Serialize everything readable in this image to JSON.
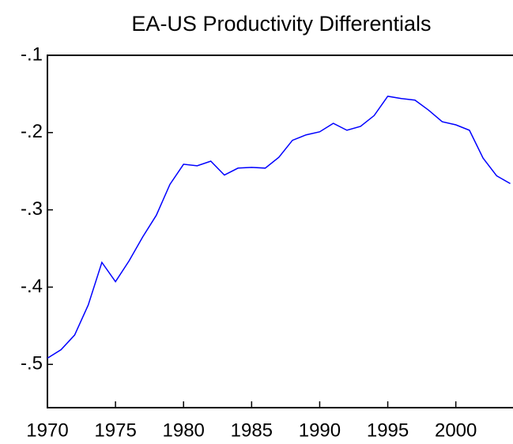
{
  "chart_data": {
    "type": "line",
    "title": "EA-US Productivity Differentials",
    "x": [
      1970,
      1971,
      1972,
      1973,
      1974,
      1975,
      1976,
      1977,
      1978,
      1979,
      1980,
      1981,
      1982,
      1983,
      1984,
      1985,
      1986,
      1987,
      1988,
      1989,
      1990,
      1991,
      1992,
      1993,
      1994,
      1995,
      1996,
      1997,
      1998,
      1999,
      2000,
      2001,
      2002,
      2003,
      2004
    ],
    "series": [
      {
        "color": "#0000ff",
        "values": [
          -0.492,
          -0.481,
          -0.462,
          -0.423,
          -0.368,
          -0.393,
          -0.366,
          -0.335,
          -0.307,
          -0.267,
          -0.241,
          -0.243,
          -0.237,
          -0.255,
          -0.246,
          -0.245,
          -0.246,
          -0.232,
          -0.21,
          -0.203,
          -0.199,
          -0.188,
          -0.197,
          -0.192,
          -0.178,
          -0.153,
          -0.156,
          -0.158,
          -0.171,
          -0.186,
          -0.19,
          -0.197,
          -0.233,
          -0.256,
          -0.266
        ]
      }
    ],
    "xlim": [
      1970,
      2004.2
    ],
    "xticks": [
      1970,
      1975,
      1980,
      1985,
      1990,
      1995,
      2000
    ],
    "ylim": [
      -0.556,
      -0.1
    ],
    "yticks": [
      {
        "value": -0.1,
        "label": "-.1"
      },
      {
        "value": -0.2,
        "label": "-.2"
      },
      {
        "value": -0.3,
        "label": "-.3"
      },
      {
        "value": -0.4,
        "label": "-.4"
      },
      {
        "value": -0.5,
        "label": "-.5"
      }
    ]
  }
}
